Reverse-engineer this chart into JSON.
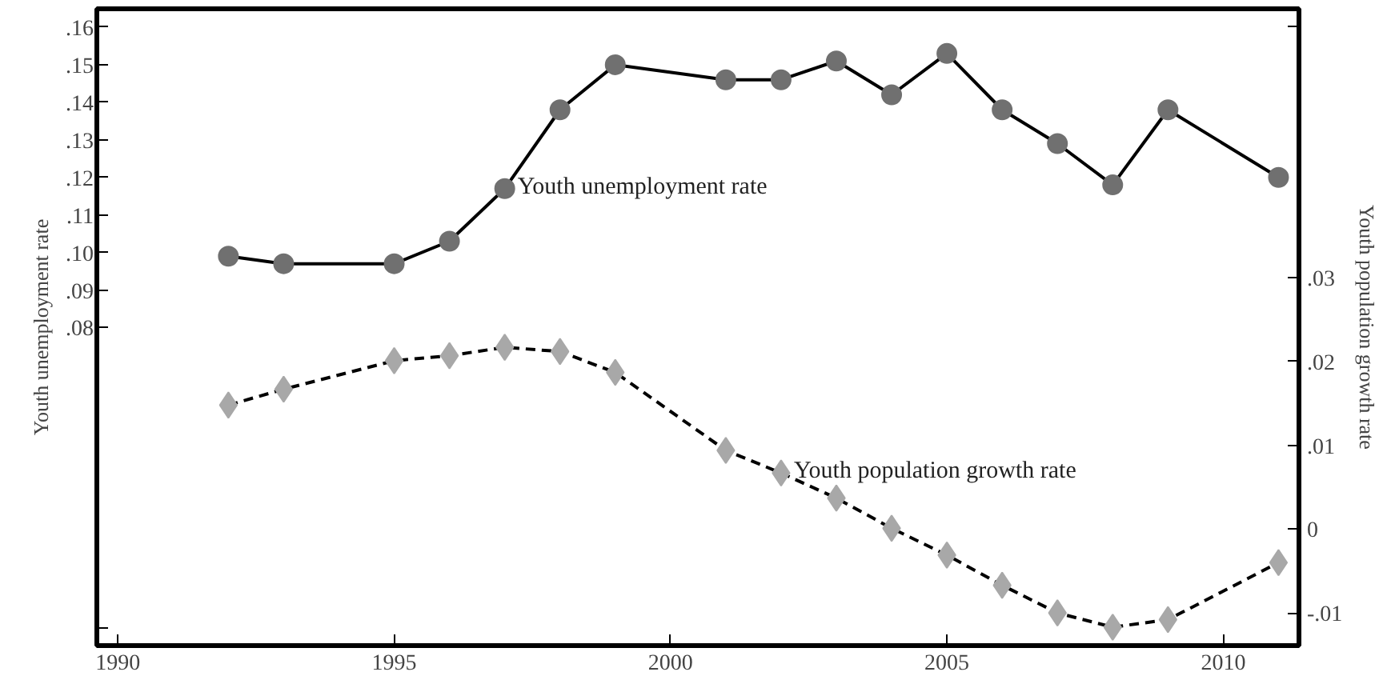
{
  "chart_data": {
    "type": "line",
    "ylabel": "Youth unemployment rate",
    "y2label": "Youth population growth rate",
    "x": [
      1992,
      1993,
      1995,
      1996,
      1997,
      1998,
      1999,
      2001,
      2002,
      2003,
      2004,
      2005,
      2006,
      2007,
      2008,
      2009,
      2011
    ],
    "xlim": [
      1989.62,
      2011.37
    ],
    "xticks": [
      1990,
      1995,
      2000,
      2005,
      2010
    ],
    "ylim": [
      -0.0047,
      0.1649
    ],
    "yticks": [
      {
        "value": 0,
        "label": null
      },
      {
        "value": 0.08,
        "label": ".08"
      },
      {
        "value": 0.09,
        "label": ".09"
      },
      {
        "value": 0.1,
        "label": ".10"
      },
      {
        "value": 0.11,
        "label": ".11"
      },
      {
        "value": 0.12,
        "label": ".12"
      },
      {
        "value": 0.13,
        "label": ".13"
      },
      {
        "value": 0.14,
        "label": ".14"
      },
      {
        "value": 0.15,
        "label": ".15"
      },
      {
        "value": 0.16,
        "label": ".16"
      }
    ],
    "y2lim": [
      -0.0139,
      0.0621
    ],
    "y2ticks": [
      {
        "value": -0.01,
        "label": "-.01"
      },
      0,
      {
        "value": 0.01,
        "label": ".01"
      },
      {
        "value": 0.02,
        "label": ".02"
      },
      {
        "value": 0.03,
        "label": ".03"
      },
      {
        "value": 0.06,
        "label": null
      }
    ],
    "series": [
      {
        "name": "Youth unemployment rate",
        "color": "#707070",
        "marker": "circle",
        "line_style": "solid",
        "values": [
          0.099,
          0.097,
          0.097,
          0.103,
          0.117,
          0.138,
          0.15,
          0.146,
          0.146,
          0.151,
          0.142,
          0.153,
          0.138,
          0.129,
          0.118,
          0.138,
          0.12
        ]
      },
      {
        "name": "Youth population growth rate",
        "color": "#a8a8a8",
        "marker": "diamond",
        "line_style": "dashed",
        "axis": "y2",
        "values": [
          0.0148,
          0.0167,
          0.0201,
          0.0207,
          0.0217,
          0.0212,
          0.0187,
          0.0094,
          0.0067,
          0.0037,
          0.0001,
          -0.0031,
          -0.0067,
          -0.01,
          -0.0117,
          -0.0108,
          -0.004
        ]
      }
    ]
  }
}
